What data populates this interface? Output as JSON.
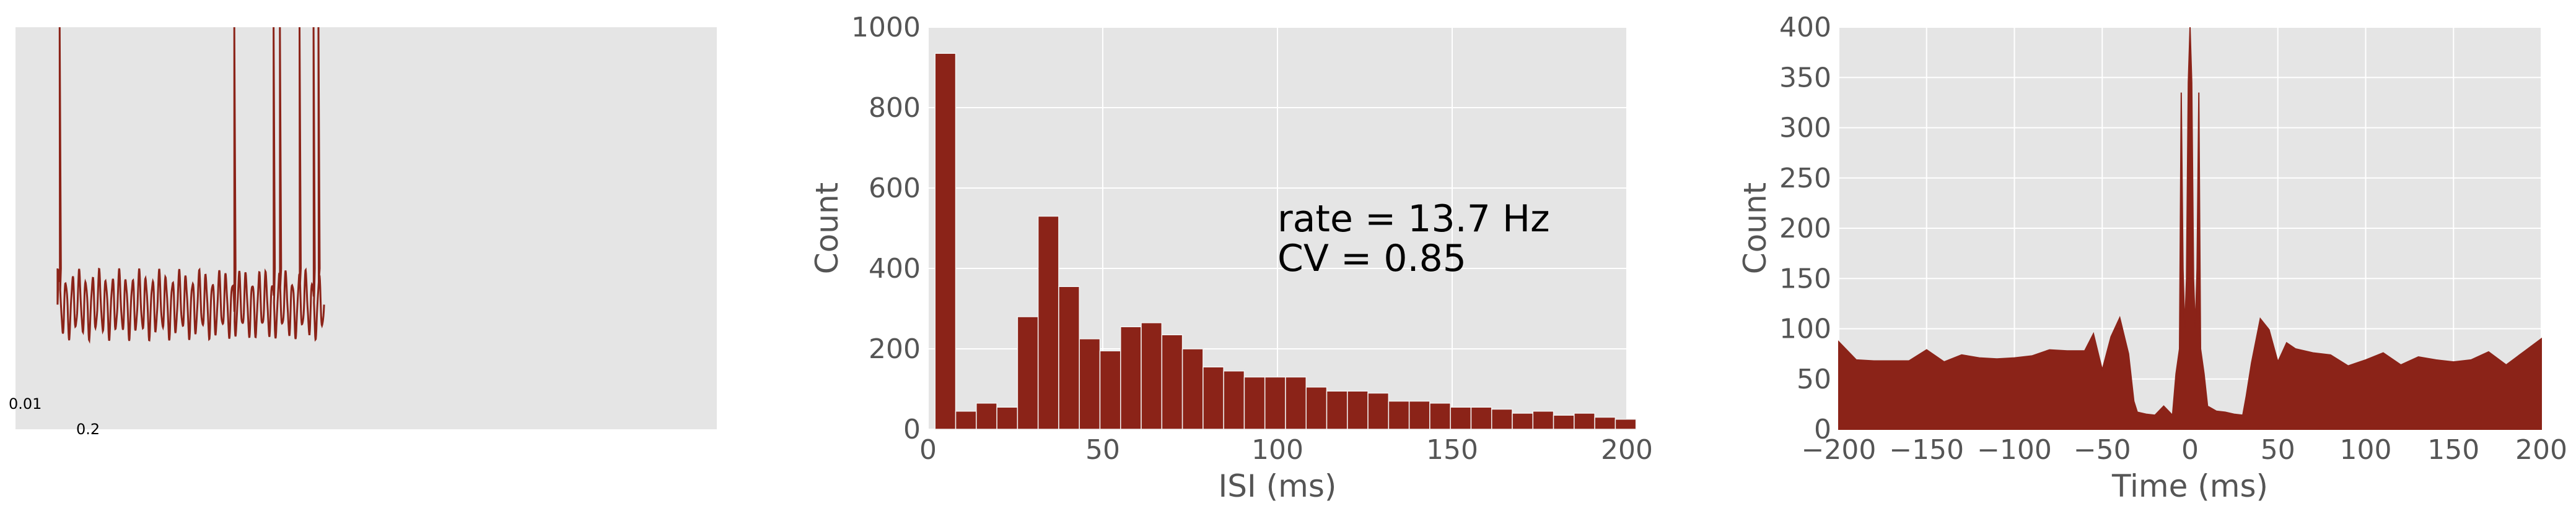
{
  "colors": {
    "bar": "#8B2318",
    "panel_bg": "#E5E5E5",
    "grid": "#FFFFFF",
    "tick_text": "#555555"
  },
  "chart_data": [
    {
      "type": "line",
      "title": "",
      "xlabel": "",
      "ylabel": "",
      "scalebar_labels": [
        "0.01",
        "0.2"
      ],
      "trace": {
        "baseline": 0.4,
        "spike_top": 1.0,
        "trace_end_fraction": 0.44,
        "spike_times": [
          0.063,
          0.312,
          0.368,
          0.377,
          0.405,
          0.425,
          0.432
        ],
        "oscillation_cycles": 40,
        "oscillation_low": 0.22,
        "oscillation_high": 0.4
      }
    },
    {
      "type": "bar",
      "title": "",
      "xlabel": "ISI (ms)",
      "ylabel": "Count",
      "xlim": [
        0,
        200
      ],
      "ylim": [
        0,
        1000
      ],
      "xticks": [
        0,
        50,
        100,
        150,
        200
      ],
      "yticks": [
        0,
        200,
        400,
        600,
        800,
        1000
      ],
      "bin_width": 5.9,
      "bin_starts": [
        2,
        7.9,
        13.8,
        19.7,
        25.6,
        31.5,
        37.4,
        43.3,
        49.2,
        55.1,
        61,
        66.9,
        72.8,
        78.7,
        84.6,
        90.5,
        96.4,
        102.3,
        108.2,
        114.1,
        120,
        125.9,
        131.8,
        137.7,
        143.6,
        149.5,
        155.4,
        161.3,
        167.2,
        173.1,
        179,
        184.9,
        190.8,
        196.7
      ],
      "values": [
        935,
        45,
        65,
        55,
        280,
        530,
        355,
        225,
        195,
        255,
        265,
        235,
        200,
        155,
        145,
        130,
        130,
        130,
        105,
        95,
        95,
        90,
        70,
        70,
        65,
        55,
        55,
        50,
        40,
        45,
        35,
        40,
        30,
        25
      ],
      "annotations": [
        "rate = 13.7 Hz",
        "CV = 0.85"
      ]
    },
    {
      "type": "area",
      "title": "",
      "xlabel": "Time (ms)",
      "ylabel": "Count",
      "xlim": [
        -200,
        200
      ],
      "ylim": [
        0,
        400
      ],
      "xticks": [
        -200,
        -150,
        -100,
        -50,
        0,
        50,
        100,
        150,
        200
      ],
      "xtick_labels": [
        "−200",
        "−150",
        "−100",
        "−50",
        "0",
        "50",
        "100",
        "150",
        "200"
      ],
      "yticks": [
        0,
        50,
        100,
        150,
        200,
        250,
        300,
        350,
        400
      ],
      "x": [
        -200,
        -190,
        -180,
        -170,
        -160,
        -150,
        -140,
        -130,
        -120,
        -110,
        -100,
        -90,
        -80,
        -70,
        -60,
        -55,
        -50,
        -45,
        -40,
        -35,
        -32,
        -30,
        -25,
        -20,
        -15,
        -10,
        -8,
        -6,
        -5,
        -4,
        -3,
        -2,
        -1,
        0,
        1,
        2,
        3,
        4,
        5,
        6,
        8,
        10,
        15,
        20,
        25,
        30,
        32,
        35,
        40,
        45,
        50,
        55,
        60,
        70,
        80,
        90,
        100,
        110,
        120,
        130,
        140,
        150,
        160,
        170,
        180,
        190,
        200
      ],
      "y": [
        92,
        70,
        65,
        72,
        68,
        75,
        70,
        73,
        66,
        72,
        69,
        78,
        80,
        75,
        82,
        95,
        55,
        95,
        110,
        70,
        30,
        15,
        20,
        15,
        20,
        18,
        55,
        80,
        335,
        160,
        100,
        150,
        345,
        400,
        345,
        150,
        100,
        160,
        335,
        80,
        55,
        18,
        20,
        15,
        20,
        15,
        30,
        70,
        110,
        95,
        70,
        85,
        75,
        78,
        72,
        68,
        70,
        73,
        68,
        72,
        65,
        70,
        68,
        72,
        66,
        75,
        95
      ]
    }
  ]
}
